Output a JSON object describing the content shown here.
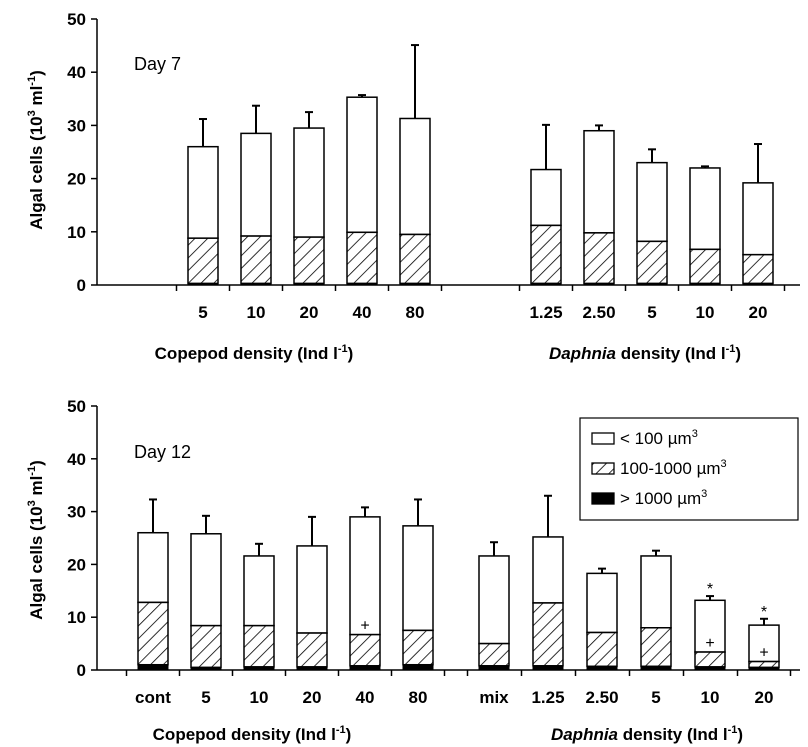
{
  "chart_data": [
    {
      "type": "bar",
      "stacked": true,
      "panel_label": "Day 7",
      "ylabel": "Algal cells (10^3 ml^-1)",
      "ylim": [
        0,
        50
      ],
      "yticks": [
        "0",
        "10",
        "20",
        "30",
        "40",
        "50"
      ],
      "grid": false,
      "groups": [
        {
          "xlabel": "Copepod density (Ind l^-1)",
          "italic_prefix": "",
          "categories": [
            "5",
            "10",
            "20",
            "40",
            "80"
          ],
          "total": [
            26,
            28.5,
            29.5,
            35.3,
            31.3
          ],
          "medium": [
            8.8,
            9.2,
            9.0,
            9.9,
            9.5
          ],
          "large": [
            0.3,
            0.3,
            0.3,
            0.3,
            0.3
          ],
          "error": [
            5.2,
            5.2,
            3.0,
            0.4,
            13.8
          ]
        },
        {
          "xlabel": "density (Ind l^-1)",
          "italic_prefix": "Daphnia",
          "categories": [
            "1.25",
            "2.50",
            "5",
            "10",
            "20"
          ],
          "total": [
            21.7,
            29.0,
            23.0,
            22.0,
            19.2
          ],
          "medium": [
            11.2,
            9.8,
            8.2,
            6.7,
            5.7
          ],
          "large": [
            0.3,
            0.3,
            0.3,
            0.3,
            0.3
          ],
          "error": [
            8.4,
            1.0,
            2.5,
            0.3,
            7.3
          ]
        }
      ]
    },
    {
      "type": "bar",
      "stacked": true,
      "panel_label": "Day 12",
      "ylabel": "Algal cells (10^3 ml^-1)",
      "ylim": [
        0,
        50
      ],
      "yticks": [
        "0",
        "10",
        "20",
        "30",
        "40",
        "50"
      ],
      "grid": false,
      "legend_position": "top-right",
      "legend": [
        "< 100 µm^3",
        "100-1000 µm^3",
        "> 1000 µm^3"
      ],
      "groups": [
        {
          "xlabel": "Copepod density (Ind l^-1)",
          "italic_prefix": "",
          "categories": [
            "cont",
            "5",
            "10",
            "20",
            "40",
            "80"
          ],
          "total": [
            26,
            25.8,
            21.6,
            23.5,
            29.0,
            27.3
          ],
          "medium": [
            12.8,
            8.4,
            8.4,
            7.0,
            6.7,
            7.5
          ],
          "large": [
            1.0,
            0.5,
            0.6,
            0.6,
            0.8,
            1.0
          ],
          "error": [
            6.3,
            3.4,
            2.3,
            5.5,
            1.8,
            5.0
          ],
          "marks": [
            "",
            "",
            "",
            "",
            "+",
            ""
          ],
          "top_marks": [
            "",
            "",
            "",
            "",
            "",
            ""
          ]
        },
        {
          "xlabel": "density (Ind l^-1)",
          "italic_prefix": "Daphnia",
          "categories": [
            "mix",
            "1.25",
            "2.50",
            "5",
            "10",
            "20"
          ],
          "total": [
            21.6,
            25.2,
            18.3,
            21.6,
            13.2,
            8.5
          ],
          "medium": [
            5.0,
            12.7,
            7.1,
            8.0,
            3.4,
            1.6
          ],
          "large": [
            0.8,
            0.8,
            0.7,
            0.7,
            0.6,
            0.5
          ],
          "error": [
            2.6,
            7.8,
            0.9,
            1.0,
            0.8,
            1.2
          ],
          "marks": [
            "",
            "",
            "",
            "",
            "+",
            "+"
          ],
          "top_marks": [
            "",
            "",
            "",
            "",
            "*",
            "*"
          ]
        }
      ]
    }
  ]
}
